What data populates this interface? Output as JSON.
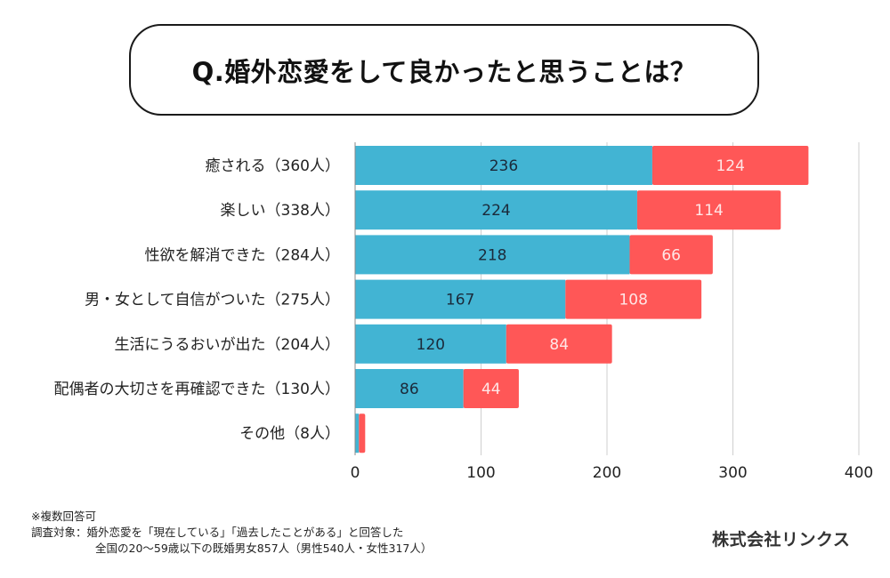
{
  "title": "Q.婚外恋愛をして良かったと思うことは？",
  "chart_data": {
    "type": "bar",
    "orientation": "horizontal",
    "stacked": true,
    "title": "Q.婚外恋愛をして良かったと思うことは？",
    "xlabel": "",
    "ylabel": "",
    "xlim": [
      0,
      400
    ],
    "xticks": [
      0,
      100,
      200,
      300,
      400
    ],
    "grid": true,
    "legend": "none",
    "categories": [
      "癒される（360人）",
      "楽しい（338人）",
      "性欲を解消できた（284人）",
      "男・女として自信がついた（275人）",
      "生活にうるおいが出た（204人）",
      "配偶者の大切さを再確認できた（130人）",
      "その他（8人）"
    ],
    "totals": [
      360,
      338,
      284,
      275,
      204,
      130,
      8
    ],
    "series": [
      {
        "name": "男性",
        "color": "#42B4D3",
        "values": [
          236,
          224,
          218,
          167,
          120,
          86,
          3
        ],
        "labels": [
          "236",
          "224",
          "218",
          "167",
          "120",
          "86",
          ""
        ]
      },
      {
        "name": "女性",
        "color": "#FF5757",
        "values": [
          124,
          114,
          66,
          108,
          84,
          44,
          5
        ],
        "labels": [
          "124",
          "114",
          "66",
          "108",
          "84",
          "44",
          ""
        ]
      }
    ]
  },
  "notes": {
    "line1": "※複数回答可",
    "line2": "調査対象：婚外恋愛を「現在している」「過去したことがある」と回答した",
    "line3": "全国の20〜59歳以下の既婚男女857人（男性540人・女性317人）"
  },
  "company": "株式会社リンクス"
}
